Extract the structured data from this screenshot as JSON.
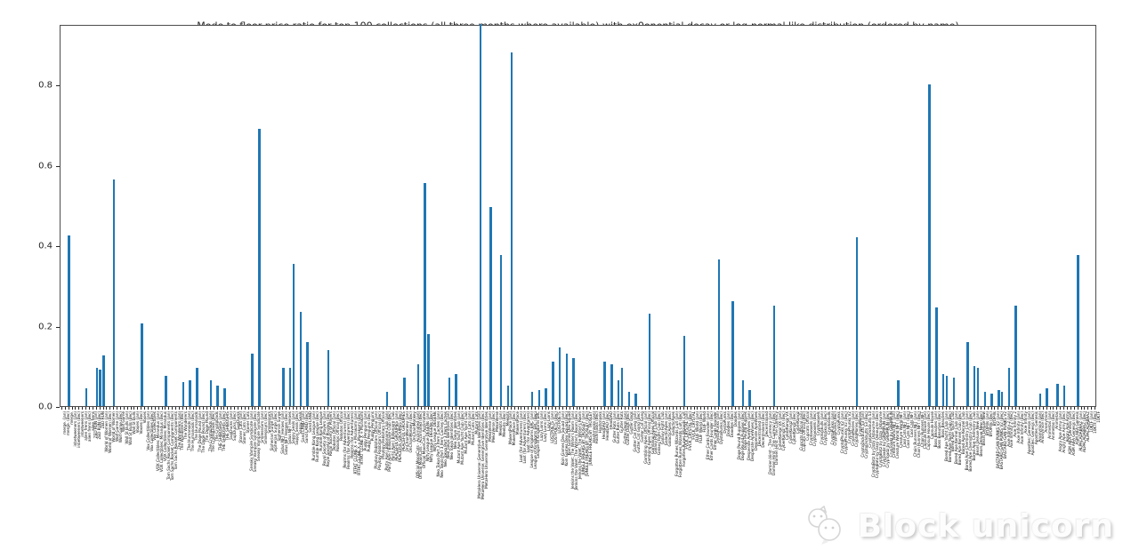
{
  "title": "Mode to floor price ratio for top 100 collections (all three months where available) with ex0onential decay or log-normal like distribution (ordered by name)",
  "watermark": {
    "text": "Block unicorn",
    "logo": "unicorn-chat-logo"
  },
  "colors": {
    "bar": "#1f77b4",
    "spine": "#4d4d4d",
    "background": "#ffffff",
    "watermark_text": "#fdfdfd"
  },
  "chart_data": {
    "type": "bar",
    "title": "Mode to floor price ratio for top 100 collections (all three months where available) with ex0onential decay or log-normal like distribution (ordered by name)",
    "xlabel": "",
    "ylabel": "",
    "ylim": [
      0,
      0.951
    ],
    "yticks": [
      "0.0",
      "0.2",
      "0.4",
      "0.6",
      "0.8"
    ],
    "grid": false,
    "legend": "none",
    "month_suffixes": [
      " (jan)",
      " (dec)",
      ""
    ],
    "collections": [
      "merge.",
      "inbetweeners",
      "alien frens",
      "ZED RUN",
      "World of Women",
      "Wolf Game",
      "Wall St Bulls",
      "Voxies",
      "Vox Collectibles",
      "VOX Collectibles: Mirandus",
      "Tom Sachs Rocket Components",
      "The Wanderers",
      "The Humanoids",
      "The Doge Pound",
      "The CryptoDads",
      "THE SHIBOSHIS",
      "SupDucks",
      "Stoner Cats",
      "Sneaky Vampire Syndicate",
      "Smilesssvrs",
      "Sipherian Surge",
      "Sidus NFT Heroes",
      "Sappy Seals",
      "Sand LAND",
      "Rumble Kong League",
      "Royal Society of Players",
      "Robotos Official",
      "Realms (for Adventurers)",
      "RTFKT CLONE X + Murakami",
      "Pudgy Penguins",
      "Playboy Rabbitars Official",
      "Party Ape | Billionaire Club",
      "PEACEFUL GROUPIES",
      "OnChainMonkey",
      "Official MoonCats - Acclimated",
      "Nifty League DEGENs",
      "Neo Tokyo Part 3 Item Caches",
      "Neo Tokyo Identities",
      "Mutant Ape Yacht Club",
      "Mutant Cats",
      "MetaHero Universe: Generative Identities",
      "MekaVerse",
      "Meebits",
      "MakersPlace",
      "Loot (for Adventurers)",
      "League of Kingdoms ERC",
      "Lazy Lions",
      "LOSTPOETS",
      "Koin Games Dev Squad",
      "Jenkins the Valet: The Writer's Room",
      "JUNGLE FREAKS BY TROSLEY",
      "Hashmasks",
      "HeadDAO",
      "Gutter Rats",
      "Gutter Dogs",
      "Gutter Cat Gang",
      "Gambling Apes Official",
      "Galaxy Fight Club",
      "GalacticApes",
      "Forgotten Runes Wizards Cult",
      "FVCK_CRYSTAL",
      "FLUF World",
      "Ether Cards Founder",
      "DystoPunks",
      "Doodles",
      "Doge Pound Puppies",
      "Desperate ApeWives",
      "Decentraland",
      "Damien Hirst - The Currency",
      "CyberKongz VX",
      "CyberKongz",
      "Cupcats Official",
      "Cryptovoxels",
      "CryptoSkulls",
      "CryptoPunks",
      "CryptoPhunks V2",
      "CryptoMories",
      "CryptoDickbutts S3",
      "CryptoBatz by Ozzy Osbourne",
      "CrypToadz by GREMPLIN",
      "Creature World NFT",
      "Cool Cats NFT",
      "Chain Runners NFT",
      "Capsule House",
      "Boss Beauties",
      "Bored Ape Yacht Club",
      "Bored Ape Kennel Club",
      "Bored Ape Chemistry Club",
      "Bears Deluxe New",
      "BYOPills",
      "BASTARD GAN PUNKS V2",
      "Axie Infinity 2",
      "Axie Infinity",
      "Apostles: Genesis",
      "Anonymice",
      "Animetas",
      "Angry Ape Army",
      "ASM AIFA Genesis",
      "ALPACADABRAZ",
      "10KTF"
    ],
    "n_slots": 300,
    "bars": [
      [
        2,
        0.425
      ],
      [
        7,
        0.045
      ],
      [
        10,
        0.095
      ],
      [
        11,
        0.09
      ],
      [
        12,
        0.125
      ],
      [
        15,
        0.565
      ],
      [
        23,
        0.205
      ],
      [
        30,
        0.075
      ],
      [
        35,
        0.06
      ],
      [
        37,
        0.065
      ],
      [
        39,
        0.095
      ],
      [
        43,
        0.065
      ],
      [
        45,
        0.05
      ],
      [
        47,
        0.045
      ],
      [
        55,
        0.13
      ],
      [
        57,
        0.69
      ],
      [
        64,
        0.095
      ],
      [
        66,
        0.095
      ],
      [
        67,
        0.355
      ],
      [
        69,
        0.235
      ],
      [
        71,
        0.16
      ],
      [
        77,
        0.14
      ],
      [
        94,
        0.035
      ],
      [
        99,
        0.07
      ],
      [
        103,
        0.105
      ],
      [
        105,
        0.555
      ],
      [
        106,
        0.18
      ],
      [
        112,
        0.07
      ],
      [
        114,
        0.08
      ],
      [
        121,
        0.95
      ],
      [
        124,
        0.495
      ],
      [
        127,
        0.375
      ],
      [
        129,
        0.05
      ],
      [
        130,
        0.88
      ],
      [
        136,
        0.035
      ],
      [
        138,
        0.04
      ],
      [
        140,
        0.045
      ],
      [
        142,
        0.11
      ],
      [
        144,
        0.145
      ],
      [
        146,
        0.13
      ],
      [
        148,
        0.12
      ],
      [
        157,
        0.11
      ],
      [
        159,
        0.105
      ],
      [
        161,
        0.065
      ],
      [
        162,
        0.095
      ],
      [
        164,
        0.035
      ],
      [
        166,
        0.03
      ],
      [
        170,
        0.23
      ],
      [
        180,
        0.175
      ],
      [
        190,
        0.365
      ],
      [
        194,
        0.26
      ],
      [
        197,
        0.065
      ],
      [
        199,
        0.04
      ],
      [
        206,
        0.25
      ],
      [
        230,
        0.42
      ],
      [
        242,
        0.065
      ],
      [
        251,
        0.8
      ],
      [
        253,
        0.245
      ],
      [
        255,
        0.08
      ],
      [
        256,
        0.075
      ],
      [
        258,
        0.07
      ],
      [
        262,
        0.16
      ],
      [
        264,
        0.1
      ],
      [
        265,
        0.095
      ],
      [
        267,
        0.035
      ],
      [
        269,
        0.03
      ],
      [
        271,
        0.04
      ],
      [
        272,
        0.035
      ],
      [
        274,
        0.095
      ],
      [
        276,
        0.25
      ],
      [
        283,
        0.03
      ],
      [
        285,
        0.045
      ],
      [
        288,
        0.055
      ],
      [
        290,
        0.05
      ],
      [
        294,
        0.375
      ]
    ]
  }
}
